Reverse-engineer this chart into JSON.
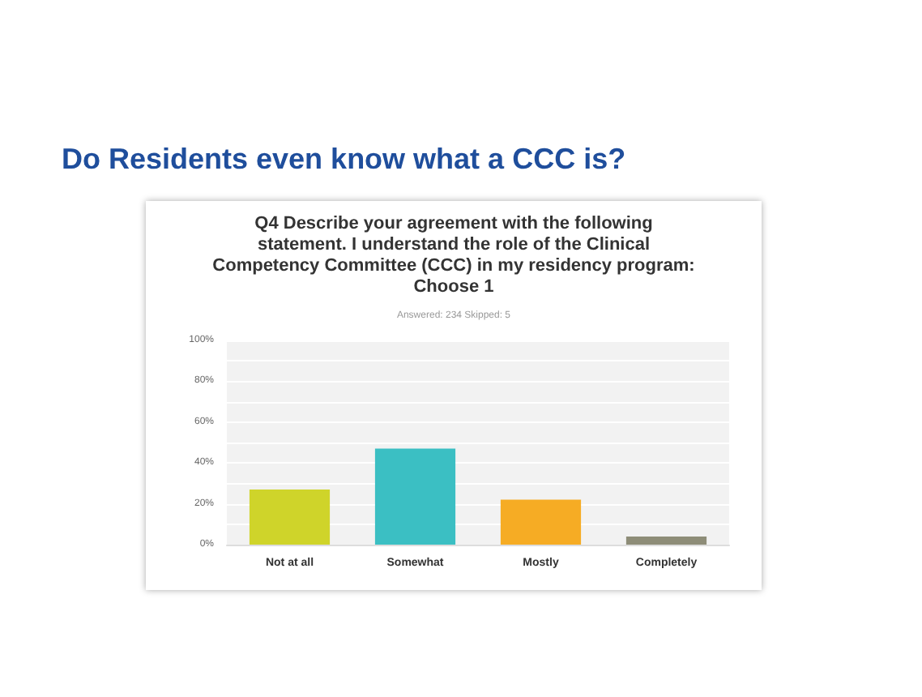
{
  "chart_data": {
    "type": "bar",
    "title": "Do Residents even know what a CCC is?",
    "subtitle": "Q4 Describe your agreement with the following statement.  I understand the role of the Clinical Competency Committee (CCC) in my residency program:  Choose 1",
    "annotations": [
      "Answered: 234    Skipped: 5"
    ],
    "categories": [
      "Not at all",
      "Somewhat",
      "Mostly",
      "Completely"
    ],
    "values": [
      27,
      47,
      22,
      4
    ],
    "colors": [
      "#cfd42a",
      "#3bbfc3",
      "#f6ac24",
      "#8e8d78"
    ],
    "ylim": [
      0,
      100
    ],
    "yticks": [
      {
        "value": 0,
        "label": "0%"
      },
      {
        "value": 10,
        "label": null
      },
      {
        "value": 20,
        "label": "20%"
      },
      {
        "value": 30,
        "label": null
      },
      {
        "value": 40,
        "label": "40%"
      },
      {
        "value": 50,
        "label": null
      },
      {
        "value": 60,
        "label": "60%"
      },
      {
        "value": 70,
        "label": null
      },
      {
        "value": 80,
        "label": "80%"
      },
      {
        "value": 90,
        "label": null
      },
      {
        "value": 100,
        "label": "100%"
      }
    ],
    "grid": "y"
  }
}
